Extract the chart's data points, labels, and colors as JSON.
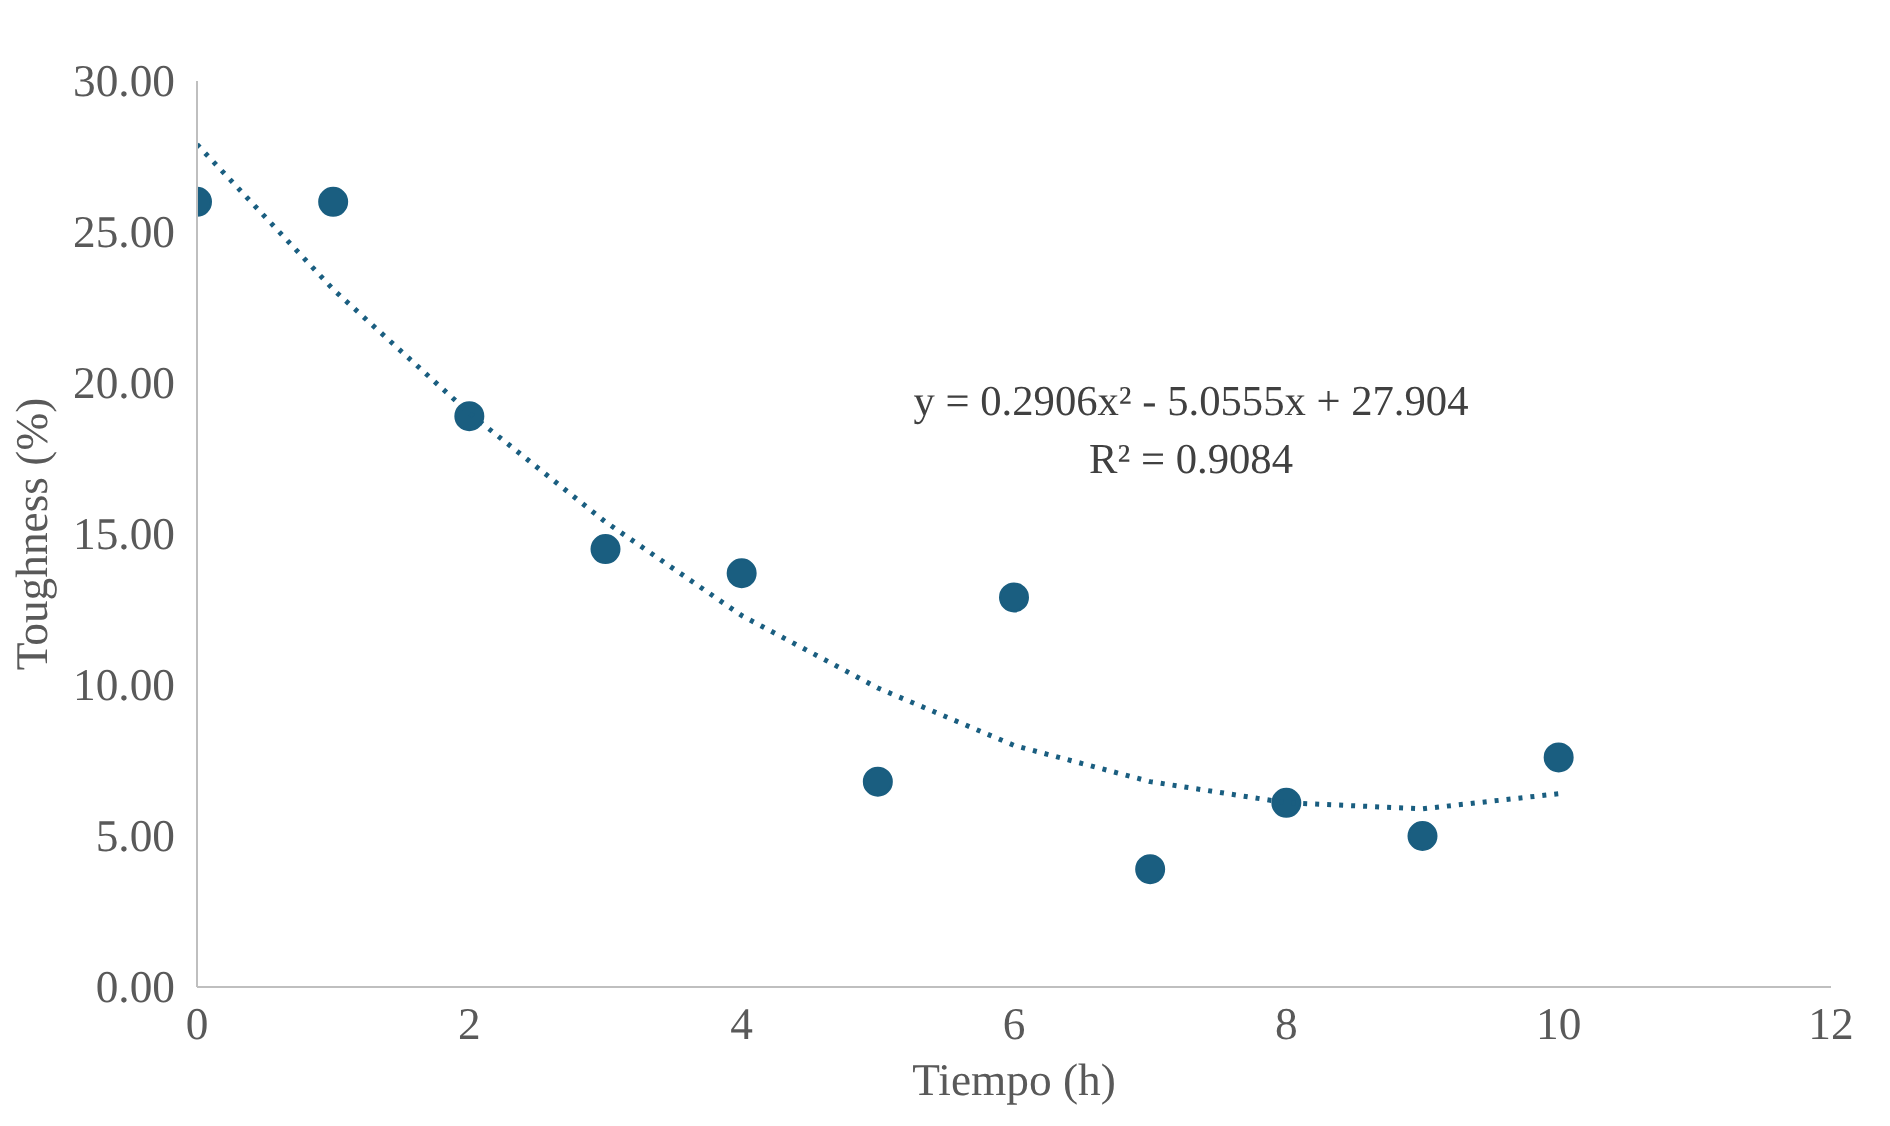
{
  "chart_data": {
    "type": "scatter",
    "xlabel": "Tiempo (h)",
    "ylabel": "Toughness (%)",
    "xlim": [
      0,
      12
    ],
    "xticks": [
      0,
      2,
      4,
      6,
      8,
      10,
      12
    ],
    "ylim": [
      0,
      30
    ],
    "yticks": [
      {
        "value": 0,
        "label": "0.00"
      },
      {
        "value": 5,
        "label": "5.00"
      },
      {
        "value": 10,
        "label": "10.00"
      },
      {
        "value": 15,
        "label": "15.00"
      },
      {
        "value": 20,
        "label": "20.00"
      },
      {
        "value": 25,
        "label": "25.00"
      },
      {
        "value": 30,
        "label": "30.00"
      }
    ],
    "grid": false,
    "x": [
      0,
      1,
      2,
      3,
      4,
      5,
      6,
      7,
      8,
      9,
      10
    ],
    "series": [
      {
        "marker": "circle",
        "color": "#1a5e80",
        "values": [
          26.0,
          26.0,
          18.9,
          14.5,
          13.7,
          6.8,
          12.9,
          3.9,
          6.1,
          5.0,
          7.6
        ]
      },
      {
        "type": "line",
        "color": "#1a5e80",
        "line_style": "dotted",
        "x": [
          0,
          1,
          2,
          3,
          4,
          5,
          6,
          7,
          8,
          9,
          10
        ],
        "values": [
          27.9,
          23.1,
          19.0,
          15.4,
          12.3,
          9.9,
          8.0,
          6.8,
          6.1,
          5.9,
          6.4
        ]
      }
    ],
    "annotations": [
      "y = 0.2906x² - 5.0555x + 27.904",
      "R² = 0.9084"
    ]
  }
}
